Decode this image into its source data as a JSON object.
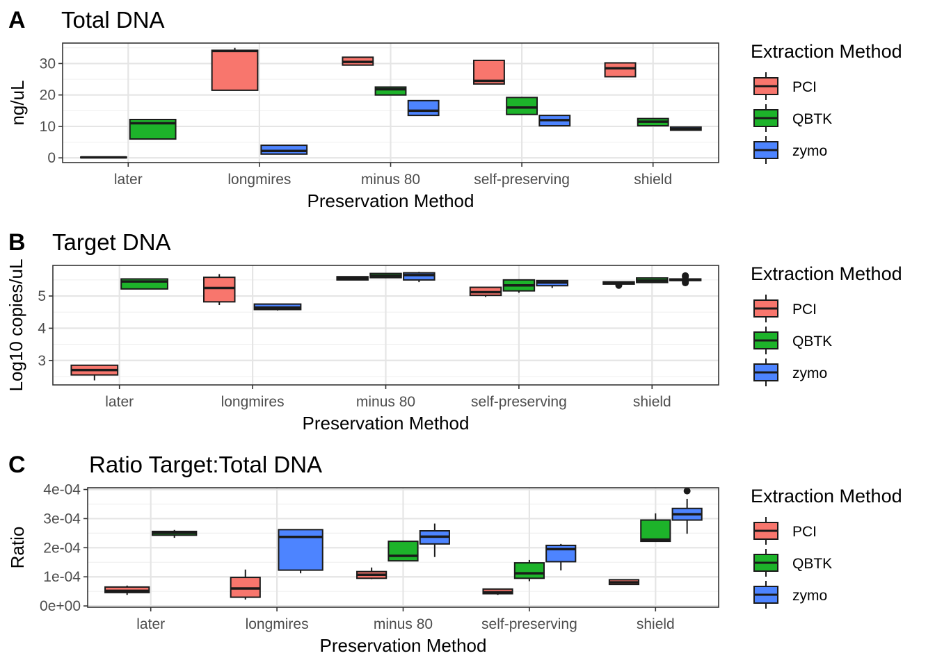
{
  "chart_data": [
    {
      "type": "boxplot",
      "panel_label": "A",
      "title": "Total DNA",
      "xlabel": "Preservation Method",
      "ylabel": "ng/uL",
      "categories": [
        "later",
        "longmires",
        "minus 80",
        "self-preserving",
        "shield"
      ],
      "ylim": [
        -1.5,
        36.5
      ],
      "yticks": [
        0,
        10,
        20,
        30
      ],
      "ytick_labels": [
        "0",
        "10",
        "20",
        "30"
      ],
      "grid": true,
      "legend": {
        "title": "Extraction Method",
        "position": "right",
        "entries": [
          {
            "name": "PCI",
            "color": "#F8766D"
          },
          {
            "name": "QBTK",
            "color": "#1DB32A"
          },
          {
            "name": "zymo",
            "color": "#4D84FF"
          }
        ]
      },
      "boxes": [
        {
          "category": "later",
          "group": "PCI",
          "slot": 0,
          "n": 2,
          "min": 0.0,
          "q1": 0.05,
          "median": 0.15,
          "q3": 0.25,
          "max": 0.35,
          "outliers": []
        },
        {
          "category": "later",
          "group": "QBTK",
          "slot": 1,
          "n": 2,
          "min": 6.0,
          "q1": 6.0,
          "median": 11.0,
          "q3": 12.2,
          "max": 12.2,
          "outliers": []
        },
        {
          "category": "longmires",
          "group": "PCI",
          "slot": 0,
          "n": 2,
          "min": 21.5,
          "q1": 21.5,
          "median": 34.0,
          "q3": 34.2,
          "max": 35.0,
          "outliers": []
        },
        {
          "category": "longmires",
          "group": "zymo",
          "slot": 1,
          "n": 2,
          "min": 1.2,
          "q1": 1.2,
          "median": 2.2,
          "q3": 4.0,
          "max": 4.0,
          "outliers": []
        },
        {
          "category": "minus 80",
          "group": "PCI",
          "slot": 0,
          "n": 3,
          "min": 29.5,
          "q1": 29.5,
          "median": 30.5,
          "q3": 32.0,
          "max": 32.0,
          "outliers": []
        },
        {
          "category": "minus 80",
          "group": "QBTK",
          "slot": 1,
          "n": 3,
          "min": 20.0,
          "q1": 20.0,
          "median": 21.8,
          "q3": 22.5,
          "max": 22.5,
          "outliers": []
        },
        {
          "category": "minus 80",
          "group": "zymo",
          "slot": 2,
          "n": 3,
          "min": 13.5,
          "q1": 13.5,
          "median": 15.0,
          "q3": 18.2,
          "max": 18.2,
          "outliers": []
        },
        {
          "category": "self-preserving",
          "group": "PCI",
          "slot": 0,
          "n": 3,
          "min": 23.5,
          "q1": 23.5,
          "median": 24.5,
          "q3": 31.0,
          "max": 31.0,
          "outliers": []
        },
        {
          "category": "self-preserving",
          "group": "QBTK",
          "slot": 1,
          "n": 3,
          "min": 13.8,
          "q1": 13.8,
          "median": 16.0,
          "q3": 19.2,
          "max": 19.2,
          "outliers": []
        },
        {
          "category": "self-preserving",
          "group": "zymo",
          "slot": 2,
          "n": 3,
          "min": 10.2,
          "q1": 10.2,
          "median": 12.0,
          "q3": 13.5,
          "max": 13.5,
          "outliers": []
        },
        {
          "category": "shield",
          "group": "PCI",
          "slot": 0,
          "n": 3,
          "min": 25.8,
          "q1": 25.8,
          "median": 28.5,
          "q3": 30.2,
          "max": 30.2,
          "outliers": []
        },
        {
          "category": "shield",
          "group": "QBTK",
          "slot": 1,
          "n": 3,
          "min": 10.2,
          "q1": 10.2,
          "median": 11.5,
          "q3": 12.5,
          "max": 12.5,
          "outliers": []
        },
        {
          "category": "shield",
          "group": "zymo",
          "slot": 2,
          "n": 3,
          "min": 8.8,
          "q1": 8.8,
          "median": 9.2,
          "q3": 9.8,
          "max": 9.8,
          "outliers": []
        }
      ]
    },
    {
      "type": "boxplot",
      "panel_label": "B",
      "title": "Target DNA",
      "xlabel": "Preservation Method",
      "ylabel": "Log10 copies/uL",
      "categories": [
        "later",
        "longmires",
        "minus 80",
        "self-preserving",
        "shield"
      ],
      "ylim": [
        2.24,
        5.95
      ],
      "yticks": [
        3,
        4,
        5
      ],
      "ytick_labels": [
        "3",
        "4",
        "5"
      ],
      "grid": true,
      "legend": {
        "title": "Extraction Method",
        "position": "right",
        "entries": [
          {
            "name": "PCI",
            "color": "#F8766D"
          },
          {
            "name": "QBTK",
            "color": "#1DB32A"
          },
          {
            "name": "zymo",
            "color": "#4D84FF"
          }
        ]
      },
      "boxes": [
        {
          "category": "later",
          "group": "PCI",
          "slot": 0,
          "n": 2,
          "min": 2.38,
          "q1": 2.55,
          "median": 2.7,
          "q3": 2.85,
          "max": 2.85,
          "outliers": []
        },
        {
          "category": "later",
          "group": "QBTK",
          "slot": 1,
          "n": 2,
          "min": 5.22,
          "q1": 5.22,
          "median": 5.45,
          "q3": 5.53,
          "max": 5.53,
          "outliers": []
        },
        {
          "category": "longmires",
          "group": "PCI",
          "slot": 0,
          "n": 3,
          "min": 4.72,
          "q1": 4.82,
          "median": 5.25,
          "q3": 5.58,
          "max": 5.68,
          "outliers": []
        },
        {
          "category": "longmires",
          "group": "zymo",
          "slot": 1,
          "n": 2,
          "min": 4.55,
          "q1": 4.58,
          "median": 4.64,
          "q3": 4.75,
          "max": 4.75,
          "outliers": []
        },
        {
          "category": "minus 80",
          "group": "PCI",
          "slot": 0,
          "n": 3,
          "min": 5.5,
          "q1": 5.5,
          "median": 5.55,
          "q3": 5.6,
          "max": 5.6,
          "outliers": []
        },
        {
          "category": "minus 80",
          "group": "QBTK",
          "slot": 1,
          "n": 3,
          "min": 5.57,
          "q1": 5.57,
          "median": 5.63,
          "q3": 5.7,
          "max": 5.7,
          "outliers": []
        },
        {
          "category": "minus 80",
          "group": "zymo",
          "slot": 2,
          "n": 3,
          "min": 5.43,
          "q1": 5.5,
          "median": 5.65,
          "q3": 5.72,
          "max": 5.75,
          "outliers": []
        },
        {
          "category": "self-preserving",
          "group": "PCI",
          "slot": 0,
          "n": 3,
          "min": 4.97,
          "q1": 5.02,
          "median": 5.12,
          "q3": 5.27,
          "max": 5.27,
          "outliers": []
        },
        {
          "category": "self-preserving",
          "group": "QBTK",
          "slot": 1,
          "n": 3,
          "min": 5.1,
          "q1": 5.16,
          "median": 5.33,
          "q3": 5.5,
          "max": 5.5,
          "outliers": []
        },
        {
          "category": "self-preserving",
          "group": "zymo",
          "slot": 2,
          "n": 3,
          "min": 5.25,
          "q1": 5.32,
          "median": 5.42,
          "q3": 5.48,
          "max": 5.48,
          "outliers": []
        },
        {
          "category": "shield",
          "group": "PCI",
          "slot": 0,
          "n": 3,
          "min": 5.37,
          "q1": 5.37,
          "median": 5.42,
          "q3": 5.44,
          "max": 5.44,
          "outliers": [
            5.33
          ]
        },
        {
          "category": "shield",
          "group": "QBTK",
          "slot": 1,
          "n": 3,
          "min": 5.42,
          "q1": 5.42,
          "median": 5.48,
          "q3": 5.56,
          "max": 5.56,
          "outliers": []
        },
        {
          "category": "shield",
          "group": "zymo",
          "slot": 2,
          "n": 3,
          "min": 5.48,
          "q1": 5.48,
          "median": 5.5,
          "q3": 5.53,
          "max": 5.53,
          "outliers": [
            5.41,
            5.44,
            5.6,
            5.63
          ]
        }
      ]
    },
    {
      "type": "boxplot",
      "panel_label": "C",
      "title": "Ratio Target:Total DNA",
      "xlabel": "Preservation Method",
      "ylabel": "Ratio",
      "categories": [
        "later",
        "longmires",
        "minus 80",
        "self-preserving",
        "shield"
      ],
      "ylim": [
        -4.5e-06,
        0.000406
      ],
      "yticks": [
        0,
        0.0001,
        0.0002,
        0.0003,
        0.0004
      ],
      "ytick_labels": [
        "0e+00",
        "1e-04",
        "2e-04",
        "3e-04",
        "4e-04"
      ],
      "grid": true,
      "legend": {
        "title": "Extraction Method",
        "position": "right",
        "entries": [
          {
            "name": "PCI",
            "color": "#F8766D"
          },
          {
            "name": "QBTK",
            "color": "#1DB32A"
          },
          {
            "name": "zymo",
            "color": "#4D84FF"
          }
        ]
      },
      "boxes": [
        {
          "category": "later",
          "group": "PCI",
          "slot": 0,
          "n": 2,
          "min": 3.8e-05,
          "q1": 4.6e-05,
          "median": 5.2e-05,
          "q3": 6.5e-05,
          "max": 7e-05,
          "outliers": []
        },
        {
          "category": "later",
          "group": "QBTK",
          "slot": 1,
          "n": 2,
          "min": 0.000234,
          "q1": 0.000243,
          "median": 0.000251,
          "q3": 0.000256,
          "max": 0.000261,
          "outliers": []
        },
        {
          "category": "longmires",
          "group": "PCI",
          "slot": 0,
          "n": 3,
          "min": 2.2e-05,
          "q1": 3e-05,
          "median": 6e-05,
          "q3": 9.8e-05,
          "max": 0.000125,
          "outliers": []
        },
        {
          "category": "longmires",
          "group": "zymo",
          "slot": 1,
          "n": 2,
          "min": 0.000112,
          "q1": 0.000123,
          "median": 0.000237,
          "q3": 0.000262,
          "max": 0.000262,
          "outliers": []
        },
        {
          "category": "minus 80",
          "group": "PCI",
          "slot": 0,
          "n": 3,
          "min": 9.2e-05,
          "q1": 9.5e-05,
          "median": 0.000107,
          "q3": 0.000118,
          "max": 0.000132,
          "outliers": []
        },
        {
          "category": "minus 80",
          "group": "QBTK",
          "slot": 1,
          "n": 3,
          "min": 0.000155,
          "q1": 0.000155,
          "median": 0.000172,
          "q3": 0.000222,
          "max": 0.000222,
          "outliers": []
        },
        {
          "category": "minus 80",
          "group": "zymo",
          "slot": 2,
          "n": 3,
          "min": 0.000168,
          "q1": 0.000213,
          "median": 0.000238,
          "q3": 0.000258,
          "max": 0.000283,
          "outliers": []
        },
        {
          "category": "self-preserving",
          "group": "PCI",
          "slot": 0,
          "n": 3,
          "min": 3.8e-05,
          "q1": 4.2e-05,
          "median": 4.7e-05,
          "q3": 5.8e-05,
          "max": 5.8e-05,
          "outliers": []
        },
        {
          "category": "self-preserving",
          "group": "QBTK",
          "slot": 1,
          "n": 3,
          "min": 8.5e-05,
          "q1": 9.5e-05,
          "median": 0.000112,
          "q3": 0.000148,
          "max": 0.000158,
          "outliers": []
        },
        {
          "category": "self-preserving",
          "group": "zymo",
          "slot": 2,
          "n": 3,
          "min": 0.000122,
          "q1": 0.000152,
          "median": 0.000195,
          "q3": 0.000208,
          "max": 0.000213,
          "outliers": []
        },
        {
          "category": "shield",
          "group": "PCI",
          "slot": 0,
          "n": 3,
          "min": 7.4e-05,
          "q1": 7.4e-05,
          "median": 8.1e-05,
          "q3": 9e-05,
          "max": 9e-05,
          "outliers": []
        },
        {
          "category": "shield",
          "group": "QBTK",
          "slot": 1,
          "n": 3,
          "min": 0.000222,
          "q1": 0.000222,
          "median": 0.000228,
          "q3": 0.000295,
          "max": 0.000318,
          "outliers": []
        },
        {
          "category": "shield",
          "group": "zymo",
          "slot": 2,
          "n": 3,
          "min": 0.000248,
          "q1": 0.000295,
          "median": 0.000315,
          "q3": 0.000335,
          "max": 0.000368,
          "outliers": [
            0.000395
          ]
        }
      ]
    }
  ]
}
